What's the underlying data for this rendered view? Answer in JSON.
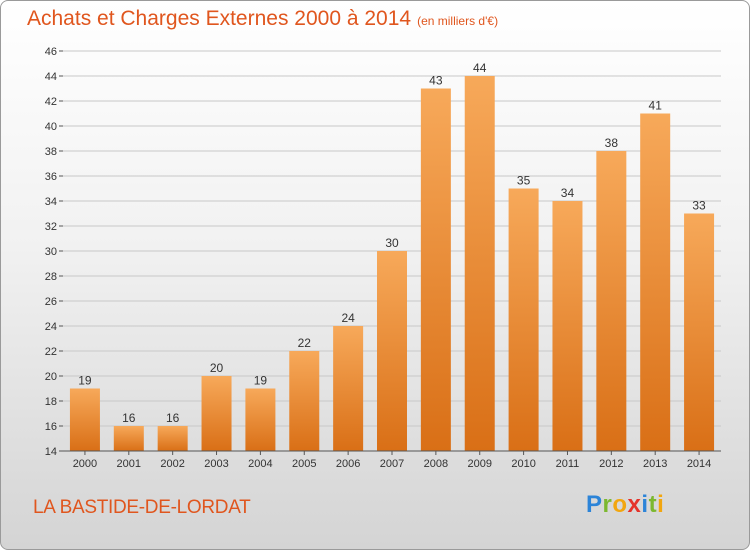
{
  "header": {
    "title": "Achats et Charges Externes 2000 à 2014",
    "subtitle": "(en milliers d'€)"
  },
  "footer": {
    "commune": "LA BASTIDE-DE-LORDAT",
    "logo": "Proxiti"
  },
  "colors": {
    "title": "#e0561e",
    "bar_top": "#f7a95a",
    "bar_bottom": "#d96f16"
  },
  "chart_data": {
    "type": "bar",
    "title": "Achats et Charges Externes 2000 à 2014",
    "subtitle": "(en milliers d'€)",
    "categories": [
      "2000",
      "2001",
      "2002",
      "2003",
      "2004",
      "2005",
      "2006",
      "2007",
      "2008",
      "2009",
      "2010",
      "2011",
      "2012",
      "2013",
      "2014"
    ],
    "values": [
      19,
      16,
      16,
      20,
      19,
      22,
      24,
      30,
      43,
      44,
      35,
      34,
      38,
      41,
      33
    ],
    "ylim": [
      14,
      46
    ],
    "yticks": [
      14,
      16,
      18,
      20,
      22,
      24,
      26,
      28,
      30,
      32,
      34,
      36,
      38,
      40,
      42,
      44,
      46
    ],
    "grid": true,
    "legend": "none"
  }
}
